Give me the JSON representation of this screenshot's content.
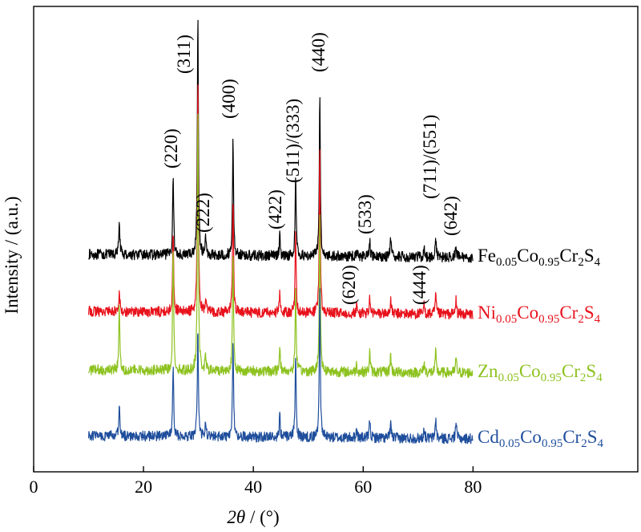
{
  "chart_data": {
    "type": "line",
    "xlabel_italic": "2θ",
    "xlabel_unit": " / (°)",
    "ylabel": "Intensity / (a.u.)",
    "xlim": [
      0,
      110
    ],
    "x_ticks": [
      0,
      20,
      40,
      60,
      80
    ],
    "x_tick_labels": [
      "0",
      "20",
      "40",
      "60",
      "80"
    ],
    "grid": false,
    "x_range_measured": [
      10,
      80
    ],
    "peak_labels": [
      {
        "label": "(220)",
        "x": 25.4
      },
      {
        "label": "(311)",
        "x": 29.9
      },
      {
        "label": "(222)",
        "x": 31.3
      },
      {
        "label": "(400)",
        "x": 36.3
      },
      {
        "label": "(422)",
        "x": 44.8
      },
      {
        "label": "(511)/(333)",
        "x": 47.7
      },
      {
        "label": "(440)",
        "x": 52.1
      },
      {
        "label": "(533)",
        "x": 61.2
      },
      {
        "label": "(620)",
        "x": 58.8
      },
      {
        "label": "(444)",
        "x": 71.1
      },
      {
        "label": "(711)/(551)",
        "x": 73.2
      },
      {
        "label": "(642)",
        "x": 76.9
      }
    ],
    "series": [
      {
        "legend_parts": [
          [
            "Fe",
            ""
          ],
          [
            "0.05",
            "sub"
          ],
          [
            "Co",
            ""
          ],
          [
            "0.95",
            "sub"
          ],
          [
            "Cr",
            ""
          ],
          [
            "2",
            "sub"
          ],
          [
            "S",
            ""
          ],
          [
            "4",
            "sub"
          ]
        ],
        "color": "#000000",
        "peaks": [
          [
            15.6,
            0.24
          ],
          [
            25.4,
            0.55
          ],
          [
            29.9,
            1.65
          ],
          [
            31.3,
            0.12
          ],
          [
            36.3,
            0.79
          ],
          [
            44.8,
            0.14
          ],
          [
            47.7,
            0.55
          ],
          [
            52.1,
            1.1
          ],
          [
            58.8,
            0.05
          ],
          [
            61.2,
            0.1
          ],
          [
            65.0,
            0.12
          ],
          [
            71.1,
            0.05
          ],
          [
            73.2,
            0.13
          ],
          [
            76.9,
            0.09
          ]
        ]
      },
      {
        "legend_parts": [
          [
            "Ni",
            ""
          ],
          [
            "0.05",
            "sub"
          ],
          [
            "Co",
            ""
          ],
          [
            "0.95",
            "sub"
          ],
          [
            "Cr",
            ""
          ],
          [
            "2",
            "sub"
          ],
          [
            "S",
            ""
          ],
          [
            "4",
            "sub"
          ]
        ],
        "color": "#e8121c",
        "peaks": [
          [
            15.6,
            0.15
          ],
          [
            25.4,
            0.55
          ],
          [
            29.9,
            1.6
          ],
          [
            31.3,
            0.1
          ],
          [
            36.3,
            0.78
          ],
          [
            44.8,
            0.13
          ],
          [
            47.7,
            0.55
          ],
          [
            52.1,
            1.1
          ],
          [
            58.8,
            0.05
          ],
          [
            61.2,
            0.1
          ],
          [
            65.0,
            0.1
          ],
          [
            71.1,
            0.06
          ],
          [
            73.2,
            0.13
          ],
          [
            76.9,
            0.1
          ]
        ]
      },
      {
        "legend_parts": [
          [
            "Zn",
            ""
          ],
          [
            "0.05",
            "sub"
          ],
          [
            "Co",
            ""
          ],
          [
            "0.95",
            "sub"
          ],
          [
            "Cr",
            ""
          ],
          [
            "2",
            "sub"
          ],
          [
            "S",
            ""
          ],
          [
            "4",
            "sub"
          ]
        ],
        "color": "#8dc21f",
        "peaks": [
          [
            15.6,
            0.44
          ],
          [
            25.4,
            0.86
          ],
          [
            29.9,
            1.75
          ],
          [
            31.3,
            0.1
          ],
          [
            36.3,
            0.8
          ],
          [
            44.8,
            0.18
          ],
          [
            47.7,
            0.55
          ],
          [
            52.1,
            1.1
          ],
          [
            58.8,
            0.05
          ],
          [
            61.2,
            0.14
          ],
          [
            65.0,
            0.12
          ],
          [
            71.1,
            0.07
          ],
          [
            73.2,
            0.14
          ],
          [
            76.9,
            0.1
          ]
        ]
      },
      {
        "legend_parts": [
          [
            "Cd",
            ""
          ],
          [
            "0.05",
            "sub"
          ],
          [
            "Co",
            ""
          ],
          [
            "0.95",
            "sub"
          ],
          [
            "Cr",
            ""
          ],
          [
            "2",
            "sub"
          ],
          [
            "S",
            ""
          ],
          [
            "4",
            "sub"
          ]
        ],
        "color": "#1f4e9c",
        "peaks": [
          [
            15.6,
            0.19
          ],
          [
            25.4,
            0.49
          ],
          [
            29.9,
            0.75
          ],
          [
            31.3,
            0.08
          ],
          [
            36.3,
            0.65
          ],
          [
            44.8,
            0.17
          ],
          [
            47.7,
            0.55
          ],
          [
            52.1,
            1.0
          ],
          [
            58.8,
            0.06
          ],
          [
            61.2,
            0.13
          ],
          [
            65.0,
            0.11
          ],
          [
            71.1,
            0.07
          ],
          [
            73.2,
            0.14
          ],
          [
            76.9,
            0.12
          ]
        ]
      }
    ]
  }
}
